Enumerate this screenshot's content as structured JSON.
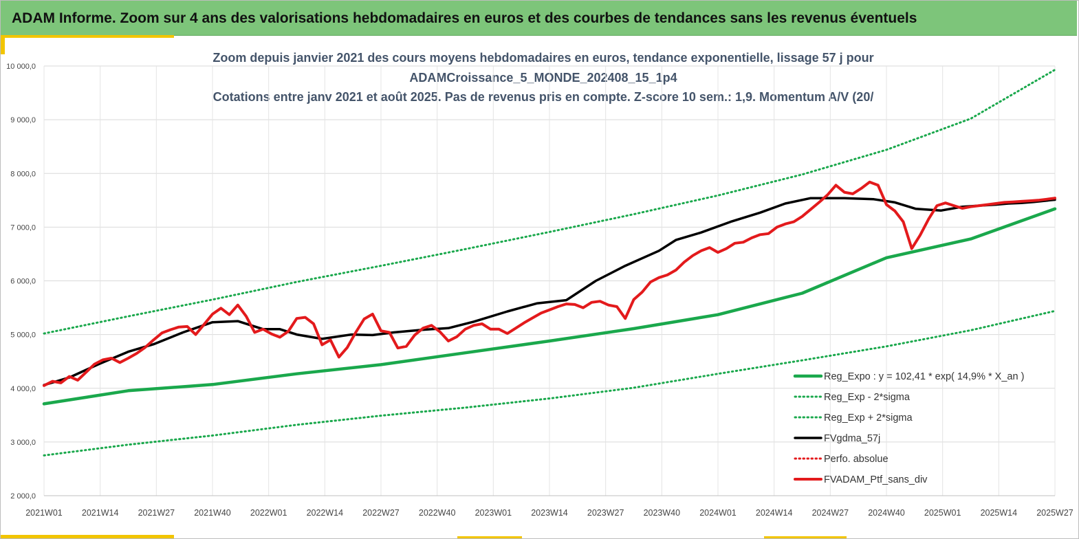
{
  "page": {
    "banner_title": "ADAM Informe. Zoom sur 4 ans des valorisations hebdomadaires en euros et des courbes de tendances sans les revenus éventuels"
  },
  "chart_data": {
    "type": "line",
    "title_lines": [
      "Zoom depuis janvier 2021 des cours moyens hebdomadaires  en euros, tendance exponentielle, lissage 57 j pour",
      "ADAMCroissance_5_MONDE_202408_15_1p4",
      "Cotations entre janv 2021 et août 2025. Pas de revenus pris en compte. Z-score 10 sem.: 1,9. Momentum A/V (20/"
    ],
    "xlabel": "",
    "ylabel": "",
    "ylim": [
      2000,
      10000
    ],
    "yticks": [
      2000,
      3000,
      4000,
      5000,
      6000,
      7000,
      8000,
      9000,
      10000
    ],
    "ytick_labels": [
      "2 000,0",
      "3 000,0",
      "4 000,0",
      "5 000,0",
      "6 000,0",
      "7 000,0",
      "8 000,0",
      "9 000,0",
      "10 000,0"
    ],
    "x_unit": "weeks since 2021W01",
    "xlim": [
      0,
      240
    ],
    "xtick_labels": [
      "2021W01",
      "2021W14",
      "2021W27",
      "2021W40",
      "2022W01",
      "2022W14",
      "2022W27",
      "2022W40",
      "2023W01",
      "2023W14",
      "2023W27",
      "2023W40",
      "2024W01",
      "2024W14",
      "2024W27",
      "2024W40",
      "2025W01",
      "2025W14",
      "2025W27"
    ],
    "grid": true,
    "legend_position": "bottom-right",
    "series": [
      {
        "name": "Reg_Expo : y = 102,41 * exp( 14,9% *  X_an )",
        "color": "#1aa84c",
        "style": "solid",
        "x": [
          0,
          20,
          40,
          60,
          80,
          100,
          120,
          140,
          160,
          180,
          200,
          220,
          240
        ],
        "y": [
          3710,
          3955,
          4070,
          4270,
          4440,
          4660,
          4880,
          5110,
          5370,
          5770,
          6430,
          6780,
          7340
        ]
      },
      {
        "name": "Reg_Exp - 2*sigma",
        "color": "#1aa84c",
        "style": "dotted",
        "x": [
          0,
          20,
          40,
          60,
          80,
          100,
          120,
          140,
          160,
          180,
          200,
          220,
          240
        ],
        "y": [
          2750,
          2950,
          3120,
          3320,
          3490,
          3640,
          3810,
          4010,
          4270,
          4520,
          4780,
          5080,
          5440
        ]
      },
      {
        "name": "Reg_Exp + 2*sigma",
        "color": "#1aa84c",
        "style": "dotted",
        "x": [
          0,
          20,
          40,
          60,
          80,
          100,
          120,
          140,
          160,
          180,
          200,
          220,
          240
        ],
        "y": [
          5020,
          5340,
          5650,
          5980,
          6280,
          6590,
          6910,
          7240,
          7590,
          7980,
          8440,
          9020,
          9930
        ]
      },
      {
        "name": "FVgdma_57j",
        "color": "#000000",
        "style": "solid",
        "x": [
          0,
          6,
          13,
          20,
          26,
          33,
          40,
          46,
          52,
          56,
          60,
          66,
          73,
          78,
          83,
          90,
          96,
          102,
          110,
          117,
          124,
          131,
          138,
          146,
          150,
          156,
          163,
          170,
          176,
          182,
          190,
          197,
          202,
          207,
          213,
          218,
          222,
          226,
          229,
          232,
          235,
          240
        ],
        "y": [
          4060,
          4200,
          4450,
          4680,
          4820,
          5040,
          5230,
          5250,
          5100,
          5100,
          5000,
          4920,
          5000,
          4990,
          5040,
          5090,
          5120,
          5240,
          5430,
          5580,
          5640,
          6000,
          6280,
          6560,
          6760,
          6900,
          7100,
          7270,
          7440,
          7540,
          7540,
          7520,
          7460,
          7340,
          7310,
          7380,
          7400,
          7420,
          7440,
          7450,
          7470,
          7510
        ]
      },
      {
        "name": "Perfo. absolue",
        "color": "#e31a1c",
        "style": "dotted",
        "x": [],
        "y": []
      },
      {
        "name": "FVADAM_Ptf_sans_div",
        "color": "#e31a1c",
        "style": "solid",
        "x": [
          0,
          2,
          4,
          6,
          8,
          10,
          12,
          14,
          16,
          18,
          20,
          22,
          24,
          26,
          28,
          30,
          32,
          34,
          36,
          38,
          40,
          42,
          44,
          46,
          48,
          50,
          52,
          54,
          56,
          58,
          60,
          62,
          64,
          66,
          68,
          70,
          72,
          74,
          76,
          78,
          80,
          82,
          84,
          86,
          88,
          90,
          92,
          94,
          96,
          98,
          100,
          102,
          104,
          106,
          108,
          110,
          112,
          114,
          116,
          118,
          120,
          122,
          124,
          126,
          128,
          130,
          132,
          134,
          136,
          138,
          140,
          142,
          144,
          146,
          148,
          150,
          152,
          154,
          156,
          158,
          160,
          162,
          164,
          166,
          168,
          170,
          172,
          174,
          176,
          178,
          180,
          182,
          184,
          186,
          188,
          190,
          192,
          194,
          196,
          198,
          200,
          202,
          204,
          206,
          208,
          210,
          212,
          214,
          216,
          218,
          220,
          222,
          224,
          226,
          228,
          230,
          232,
          234,
          236,
          238,
          240
        ],
        "y": [
          4050,
          4130,
          4100,
          4220,
          4150,
          4300,
          4450,
          4530,
          4560,
          4480,
          4560,
          4650,
          4760,
          4900,
          5030,
          5090,
          5140,
          5150,
          5000,
          5190,
          5380,
          5490,
          5370,
          5550,
          5340,
          5040,
          5100,
          5010,
          4950,
          5060,
          5300,
          5320,
          5200,
          4810,
          4900,
          4580,
          4760,
          5040,
          5290,
          5380,
          5070,
          5040,
          4750,
          4780,
          4990,
          5120,
          5170,
          5050,
          4880,
          4960,
          5100,
          5170,
          5200,
          5100,
          5100,
          5020,
          5120,
          5220,
          5310,
          5400,
          5460,
          5520,
          5570,
          5560,
          5500,
          5600,
          5620,
          5550,
          5520,
          5300,
          5650,
          5790,
          5980,
          6060,
          6110,
          6200,
          6350,
          6470,
          6560,
          6620,
          6530,
          6600,
          6700,
          6720,
          6800,
          6860,
          6880,
          7000,
          7060,
          7100,
          7200,
          7330,
          7460,
          7600,
          7780,
          7650,
          7620,
          7720,
          7840,
          7780,
          7420,
          7300,
          7100,
          6600,
          6850,
          7150,
          7400,
          7450,
          7400,
          7350,
          7380,
          7400,
          7420,
          7440,
          7460,
          7470,
          7480,
          7490,
          7500,
          7520,
          7540
        ]
      }
    ]
  }
}
